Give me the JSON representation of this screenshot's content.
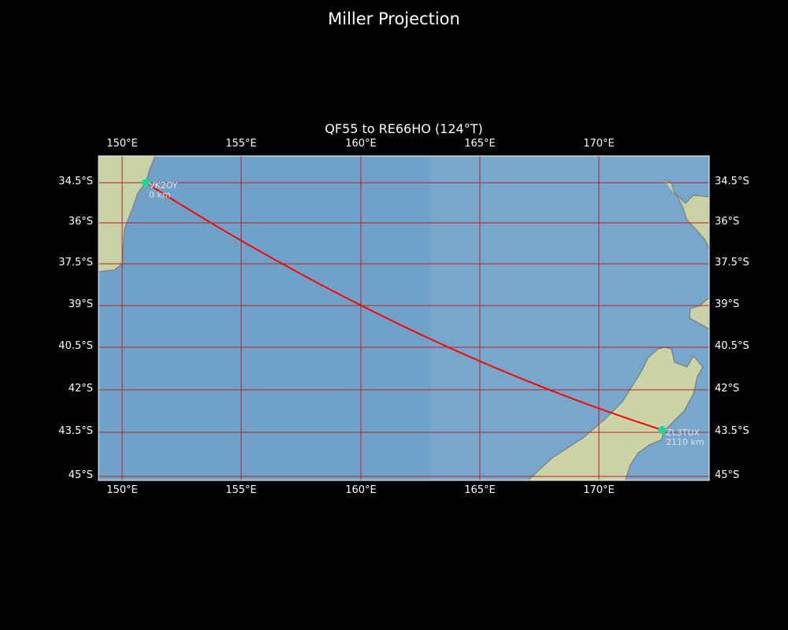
{
  "title": "Miller Projection",
  "map": {
    "subtitle": "QF55 to RE66HO (124°T)",
    "projection": "Miller",
    "extent": {
      "lon": [
        149.0,
        174.6
      ],
      "lat": [
        -45.05,
        -33.6
      ]
    },
    "lon_ticks": [
      "150°E",
      "155°E",
      "160°E",
      "165°E",
      "170°E"
    ],
    "lat_ticks": [
      "34.5°S",
      "36°S",
      "37.5°S",
      "39°S",
      "40.5°S",
      "42°S",
      "43.5°S",
      "45°S"
    ],
    "colors": {
      "ocean": "#79a9cf",
      "land": "#c9d3a8",
      "coast": "#7f7f7f",
      "grid": "#b8202a",
      "path": "#ff0000",
      "station": "#1ed89a",
      "label": "#e0e0e0"
    },
    "stations": [
      {
        "call": "VK2OY",
        "distance": "0 km"
      },
      {
        "call": "ZL3TUX",
        "distance": "2110 km"
      }
    ]
  }
}
